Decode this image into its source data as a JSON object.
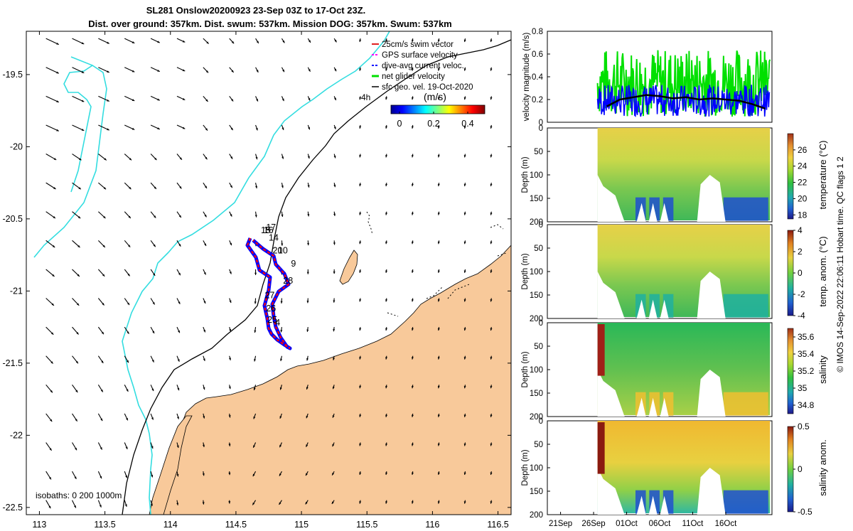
{
  "header": {
    "title_line1": "SL281 Onslow20200923 23-Sep 03Z to 17-Oct 23Z.",
    "title_line2": "Dist. over ground: 357km. Dist. swum: 537km. Mission DOG: 357km. Swum: 537km"
  },
  "colors": {
    "land": "#f8c99a",
    "isobath_200": "#33dde0",
    "isobath_1000": "#000000",
    "track_red": "#ff0000",
    "track_blue": "#0000ff",
    "net_velocity": "#00e000",
    "mean_line": "#000000"
  },
  "chart_data": [
    {
      "type": "map",
      "name": "glider-track-map",
      "xlim": [
        112.9,
        116.6
      ],
      "ylim": [
        -22.55,
        -19.2
      ],
      "x_ticks": [
        "113",
        "113.5",
        "114",
        "114.5",
        "115",
        "115.5",
        "116",
        "116.5"
      ],
      "x_tick_values": [
        113,
        113.5,
        114,
        114.5,
        115,
        115.5,
        116,
        116.5
      ],
      "y_ticks": [
        "-19.5",
        "-20",
        "-20.5",
        "-21",
        "-21.5",
        "-22",
        "-22.5"
      ],
      "y_tick_values": [
        -19.5,
        -20,
        -20.5,
        -21,
        -21.5,
        -22,
        -22.5
      ],
      "legend": [
        "25cm/s swim vector",
        "GPS surface velocity",
        "dive-avg current veloc.",
        "net glider velocity",
        "sfc geo. vel. 19-Oct-2020"
      ],
      "legend_location": "top-right",
      "colorbar": {
        "label": "(m/s)",
        "note": "4h",
        "ticks": [
          "0",
          "0.2",
          "0.4"
        ],
        "tick_values": [
          0,
          0.2,
          0.4
        ],
        "range": [
          -0.05,
          0.5
        ]
      },
      "isobaths_label": "isobaths: 0   200   1000m",
      "track_labels": [
        {
          "text": "17",
          "lon": 114.73,
          "lat": -20.58
        },
        {
          "text": "16",
          "lon": 114.71,
          "lat": -20.6
        },
        {
          "text": "15",
          "lon": 114.69,
          "lat": -20.6
        },
        {
          "text": "14",
          "lon": 114.75,
          "lat": -20.65
        },
        {
          "text": "20",
          "lon": 114.78,
          "lat": -20.74
        },
        {
          "text": "10",
          "lon": 114.82,
          "lat": -20.74
        },
        {
          "text": "9",
          "lon": 114.92,
          "lat": -20.83
        },
        {
          "text": "28",
          "lon": 114.86,
          "lat": -20.95
        },
        {
          "text": "27",
          "lon": 114.72,
          "lat": -21.05
        },
        {
          "text": "26",
          "lon": 114.73,
          "lat": -21.14
        },
        {
          "text": "25",
          "lon": 114.74,
          "lat": -21.22
        },
        {
          "text": "4",
          "lon": 114.8,
          "lat": -21.24
        }
      ],
      "surface_velocity_field": {
        "lon_start": 113.05,
        "lat_start": -19.25,
        "spacing": 0.2,
        "cols": 18,
        "rows": 17
      }
    },
    {
      "type": "line",
      "name": "velocity-magnitude",
      "ylabel": "velocity magnitude (m/s)",
      "ylim": [
        0,
        0.8
      ],
      "y_ticks": [
        "0",
        "0.2",
        "0.4",
        "0.6",
        "0.8"
      ],
      "y_tick_values": [
        0,
        0.2,
        0.4,
        0.6,
        0.8
      ],
      "x_range_days": [
        0,
        29
      ],
      "series": [
        {
          "name": "net glider velocity",
          "color": "#00e000"
        },
        {
          "name": "dive-avg current veloc.",
          "color": "#0000ff"
        },
        {
          "name": "running mean",
          "color": "#000000",
          "x": [
            5,
            7,
            9,
            11,
            13,
            15,
            17,
            19,
            21,
            23,
            25,
            27,
            29
          ],
          "y": [
            0.14,
            0.2,
            0.22,
            0.24,
            0.23,
            0.21,
            0.22,
            0.2,
            0.21,
            0.2,
            0.19,
            0.16,
            0.12
          ]
        }
      ]
    },
    {
      "type": "heatmap",
      "name": "temperature-section",
      "ylabel": "Depth (m)",
      "clabel": "temperature (°C)",
      "y_ticks": [
        "0",
        "50",
        "100",
        "150",
        "200"
      ],
      "c_ticks": [
        "18",
        "20",
        "22",
        "24",
        "26"
      ],
      "c_tick_values": [
        18,
        20,
        22,
        24,
        26
      ],
      "c_range": [
        17.5,
        28
      ]
    },
    {
      "type": "heatmap",
      "name": "temperature-anomaly-section",
      "ylabel": "Depth (m)",
      "clabel": "temp. anom. (°C)",
      "y_ticks": [
        "0",
        "50",
        "100",
        "150",
        "200"
      ],
      "c_ticks": [
        "4",
        "2",
        "0",
        "-2",
        "-4"
      ],
      "c_tick_values": [
        4,
        2,
        0,
        -2,
        -4
      ],
      "c_range": [
        -4,
        4
      ]
    },
    {
      "type": "heatmap",
      "name": "salinity-section",
      "ylabel": "Depth (m)",
      "clabel": "salinity",
      "y_ticks": [
        "0",
        "50",
        "100",
        "150",
        "200"
      ],
      "c_ticks": [
        "35.6",
        "35.4",
        "35.2",
        "35",
        "34.8"
      ],
      "c_tick_values": [
        35.6,
        35.4,
        35.2,
        35.0,
        34.8
      ],
      "c_range": [
        34.7,
        35.7
      ]
    },
    {
      "type": "heatmap",
      "name": "salinity-anomaly-section",
      "ylabel": "Depth (m)",
      "clabel": "salinity anom.",
      "y_ticks": [
        "0",
        "50",
        "100",
        "150",
        "200"
      ],
      "c_ticks": [
        "0.5",
        "0",
        "-0.5"
      ],
      "c_tick_values": [
        0.5,
        0,
        -0.5
      ],
      "c_range": [
        -0.5,
        0.5
      ],
      "x_ticks": [
        "21Sep",
        "26Sep",
        "01Oct",
        "06Oct",
        "11Oct",
        "16Oct"
      ],
      "x_tick_days": [
        -2,
        3,
        8,
        13,
        18,
        23
      ]
    }
  ],
  "footer": {
    "credit": "© IMOS 14-Sep-2022 22:06:11 Hobart time. QC flags 1  2"
  }
}
